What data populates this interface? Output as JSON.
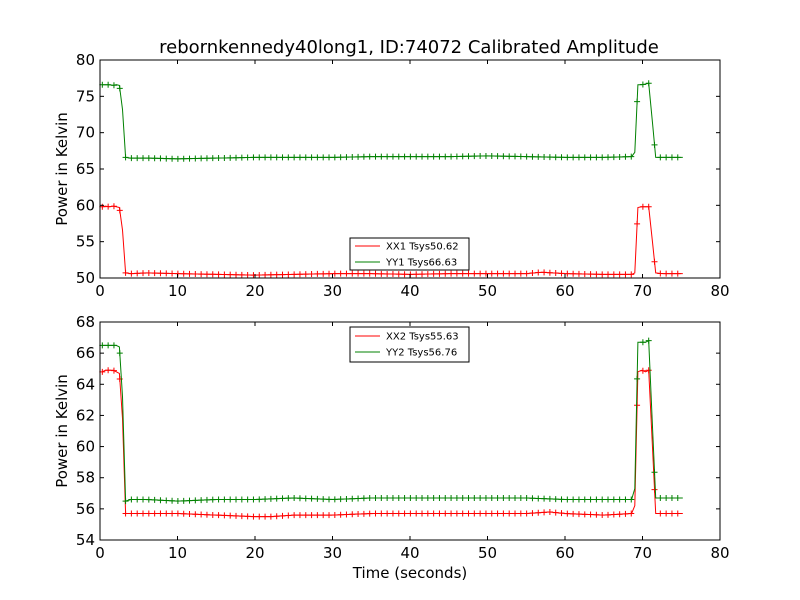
{
  "figure": {
    "title": "rebornkennedy40long1, ID:74072 Calibrated Amplitude"
  },
  "chart_data": [
    {
      "type": "line",
      "ylabel": "Power in Kelvin",
      "xlabel": "",
      "xlim": [
        0,
        80
      ],
      "ylim": [
        50,
        80
      ],
      "xticks": [
        0,
        10,
        20,
        30,
        40,
        50,
        60,
        70,
        80
      ],
      "yticks": [
        50,
        55,
        60,
        65,
        70,
        75,
        80
      ],
      "grid": false,
      "legend_position": "lower-center",
      "series": [
        {
          "name": "XX1 Tsys50.62",
          "color": "#ff0000",
          "points": [
            [
              0.3,
              59.8
            ],
            [
              0.7,
              59.9
            ],
            [
              1.2,
              59.8
            ],
            [
              1.7,
              59.9
            ],
            [
              2.1,
              59.8
            ],
            [
              2.5,
              59.7
            ],
            [
              2.9,
              56.6
            ],
            [
              3.3,
              50.7
            ],
            [
              4.0,
              50.6
            ],
            [
              6.0,
              50.7
            ],
            [
              10.0,
              50.6
            ],
            [
              15.0,
              50.5
            ],
            [
              20.0,
              50.4
            ],
            [
              25.0,
              50.5
            ],
            [
              30.0,
              50.6
            ],
            [
              35.0,
              50.6
            ],
            [
              40.0,
              50.5
            ],
            [
              45.0,
              50.6
            ],
            [
              50.0,
              50.6
            ],
            [
              55.0,
              50.6
            ],
            [
              57.0,
              50.8
            ],
            [
              60.0,
              50.6
            ],
            [
              65.0,
              50.5
            ],
            [
              68.6,
              50.5
            ],
            [
              69.0,
              50.7
            ],
            [
              69.4,
              59.7
            ],
            [
              69.9,
              59.8
            ],
            [
              70.4,
              59.8
            ],
            [
              70.8,
              59.8
            ],
            [
              71.3,
              54.8
            ],
            [
              71.7,
              50.7
            ],
            [
              72.5,
              50.6
            ],
            [
              73.5,
              50.6
            ],
            [
              74.5,
              50.6
            ],
            [
              75.2,
              50.6
            ]
          ]
        },
        {
          "name": "YY1 Tsys66.63",
          "color": "#008000",
          "points": [
            [
              0.3,
              76.6
            ],
            [
              0.7,
              76.6
            ],
            [
              1.2,
              76.6
            ],
            [
              1.7,
              76.5
            ],
            [
              2.1,
              76.6
            ],
            [
              2.5,
              76.5
            ],
            [
              2.9,
              73.2
            ],
            [
              3.3,
              66.6
            ],
            [
              4.0,
              66.5
            ],
            [
              6.0,
              66.5
            ],
            [
              10.0,
              66.4
            ],
            [
              15.0,
              66.5
            ],
            [
              20.0,
              66.6
            ],
            [
              25.0,
              66.6
            ],
            [
              30.0,
              66.6
            ],
            [
              35.0,
              66.7
            ],
            [
              40.0,
              66.7
            ],
            [
              45.0,
              66.7
            ],
            [
              50.0,
              66.8
            ],
            [
              55.0,
              66.7
            ],
            [
              60.0,
              66.6
            ],
            [
              65.0,
              66.6
            ],
            [
              68.6,
              66.7
            ],
            [
              69.0,
              67.3
            ],
            [
              69.4,
              76.6
            ],
            [
              69.9,
              76.6
            ],
            [
              70.4,
              76.7
            ],
            [
              70.8,
              76.8
            ],
            [
              71.3,
              71.2
            ],
            [
              71.7,
              66.6
            ],
            [
              72.5,
              66.6
            ],
            [
              73.5,
              66.6
            ],
            [
              74.5,
              66.6
            ],
            [
              75.2,
              66.6
            ]
          ]
        }
      ]
    },
    {
      "type": "line",
      "ylabel": "Power in Kelvin",
      "xlabel": "Time (seconds)",
      "xlim": [
        0,
        80
      ],
      "ylim": [
        54,
        68
      ],
      "xticks": [
        0,
        10,
        20,
        30,
        40,
        50,
        60,
        70,
        80
      ],
      "yticks": [
        54,
        56,
        58,
        60,
        62,
        64,
        66,
        68
      ],
      "grid": false,
      "legend_position": "upper-center",
      "series": [
        {
          "name": "XX2 Tsys55.63",
          "color": "#ff0000",
          "points": [
            [
              0.3,
              64.8
            ],
            [
              0.7,
              64.9
            ],
            [
              1.2,
              64.9
            ],
            [
              1.7,
              64.9
            ],
            [
              2.1,
              64.8
            ],
            [
              2.5,
              64.7
            ],
            [
              2.9,
              61.8
            ],
            [
              3.3,
              55.7
            ],
            [
              4.0,
              55.7
            ],
            [
              6.0,
              55.7
            ],
            [
              10.0,
              55.7
            ],
            [
              15.0,
              55.6
            ],
            [
              20.0,
              55.5
            ],
            [
              22.0,
              55.5
            ],
            [
              25.0,
              55.6
            ],
            [
              30.0,
              55.6
            ],
            [
              35.0,
              55.7
            ],
            [
              40.0,
              55.7
            ],
            [
              45.0,
              55.7
            ],
            [
              50.0,
              55.7
            ],
            [
              55.0,
              55.7
            ],
            [
              58.0,
              55.8
            ],
            [
              60.0,
              55.7
            ],
            [
              65.0,
              55.6
            ],
            [
              68.6,
              55.7
            ],
            [
              69.0,
              56.2
            ],
            [
              69.4,
              64.8
            ],
            [
              69.9,
              64.9
            ],
            [
              70.4,
              64.8
            ],
            [
              70.8,
              64.9
            ],
            [
              71.3,
              59.8
            ],
            [
              71.7,
              55.7
            ],
            [
              72.5,
              55.7
            ],
            [
              73.5,
              55.7
            ],
            [
              74.5,
              55.7
            ],
            [
              75.2,
              55.7
            ]
          ]
        },
        {
          "name": "YY2 Tsys56.76",
          "color": "#008000",
          "points": [
            [
              0.3,
              66.5
            ],
            [
              0.7,
              66.5
            ],
            [
              1.2,
              66.5
            ],
            [
              1.7,
              66.5
            ],
            [
              2.1,
              66.5
            ],
            [
              2.5,
              66.4
            ],
            [
              2.9,
              63.2
            ],
            [
              3.3,
              56.5
            ],
            [
              4.0,
              56.6
            ],
            [
              6.0,
              56.6
            ],
            [
              10.0,
              56.5
            ],
            [
              15.0,
              56.6
            ],
            [
              20.0,
              56.6
            ],
            [
              25.0,
              56.7
            ],
            [
              30.0,
              56.6
            ],
            [
              35.0,
              56.7
            ],
            [
              40.0,
              56.7
            ],
            [
              45.0,
              56.7
            ],
            [
              50.0,
              56.7
            ],
            [
              55.0,
              56.7
            ],
            [
              60.0,
              56.6
            ],
            [
              65.0,
              56.6
            ],
            [
              68.6,
              56.6
            ],
            [
              69.0,
              57.3
            ],
            [
              69.4,
              66.7
            ],
            [
              69.9,
              66.7
            ],
            [
              70.4,
              66.7
            ],
            [
              70.8,
              66.8
            ],
            [
              71.3,
              61.1
            ],
            [
              71.7,
              56.7
            ],
            [
              72.5,
              56.7
            ],
            [
              73.5,
              56.7
            ],
            [
              74.5,
              56.7
            ],
            [
              75.2,
              56.7
            ]
          ]
        }
      ]
    }
  ]
}
